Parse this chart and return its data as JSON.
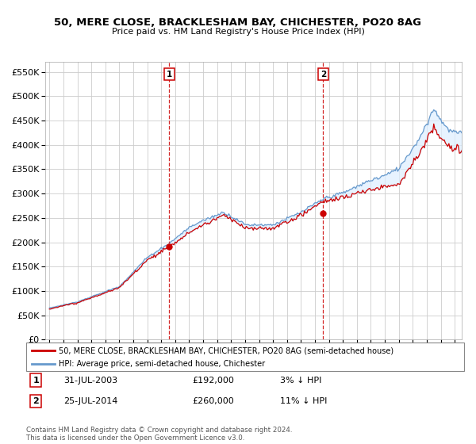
{
  "title1": "50, MERE CLOSE, BRACKLESHAM BAY, CHICHESTER, PO20 8AG",
  "title2": "Price paid vs. HM Land Registry's House Price Index (HPI)",
  "ylim": [
    0,
    570000
  ],
  "yticks": [
    0,
    50000,
    100000,
    150000,
    200000,
    250000,
    300000,
    350000,
    400000,
    450000,
    500000,
    550000
  ],
  "sale1_x": 2003.583,
  "sale1_price": 192000,
  "sale1_label": "1",
  "sale2_x": 2014.583,
  "sale2_price": 260000,
  "sale2_label": "2",
  "legend_property": "50, MERE CLOSE, BRACKLESHAM BAY, CHICHESTER, PO20 8AG (semi-detached house)",
  "legend_hpi": "HPI: Average price, semi-detached house, Chichester",
  "info1_date": "31-JUL-2003",
  "info1_price": "£192,000",
  "info1_pct": "3% ↓ HPI",
  "info2_date": "25-JUL-2014",
  "info2_price": "£260,000",
  "info2_pct": "11% ↓ HPI",
  "footnote": "Contains HM Land Registry data © Crown copyright and database right 2024.\nThis data is licensed under the Open Government Licence v3.0.",
  "property_color": "#cc0000",
  "hpi_color": "#6699cc",
  "fill_color": "#ddeeff",
  "vline_color": "#cc0000",
  "grid_color": "#cccccc",
  "background_color": "#ffffff",
  "xstart": 1995,
  "xend": 2024,
  "xlim_left": 1994.7,
  "xlim_right": 2024.5
}
